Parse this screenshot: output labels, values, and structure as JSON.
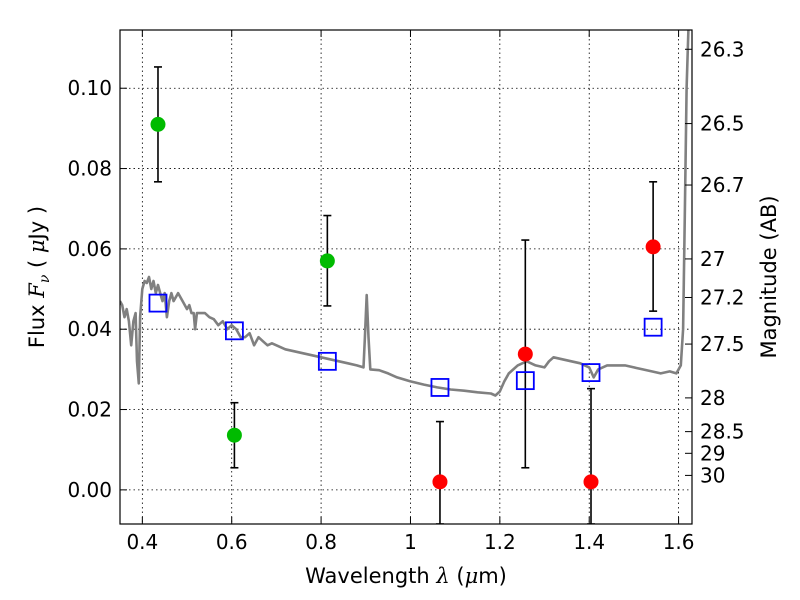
{
  "chart_data": {
    "type": "scatter",
    "xlabel": {
      "prefix": "Wavelength  ",
      "symbol": "λ",
      "suffix": " (",
      "mu": "μ",
      "unit": "m)"
    },
    "ylabel": {
      "prefix": "Flux  ",
      "symbol": "F",
      "sub": "ν",
      "suffix": "  ( ",
      "mu": "μ",
      "unit": "Jy )"
    },
    "y2label": "Magnitude (AB)",
    "xlim": [
      0.35,
      1.63
    ],
    "ylim": [
      -0.0085,
      0.1145
    ],
    "xticks": [
      0.4,
      0.6,
      0.8,
      1.0,
      1.2,
      1.4,
      1.6
    ],
    "xtick_labels": [
      "0.4",
      "0.6",
      "0.8",
      "1",
      "1.2",
      "1.4",
      "1.6"
    ],
    "yticks": [
      0.0,
      0.02,
      0.04,
      0.06,
      0.08,
      0.1
    ],
    "ytick_labels": [
      "0.00",
      "0.02",
      "0.04",
      "0.06",
      "0.08",
      "0.10"
    ],
    "magnitude_ticks": [
      {
        "label": "26.3",
        "flux": 0.1097
      },
      {
        "label": "26.5",
        "flux": 0.0912
      },
      {
        "label": "26.7",
        "flux": 0.0759
      },
      {
        "label": "27",
        "flux": 0.0575
      },
      {
        "label": "27.2",
        "flux": 0.0479
      },
      {
        "label": "27.5",
        "flux": 0.0363
      },
      {
        "label": "28",
        "flux": 0.0229
      },
      {
        "label": "28.5",
        "flux": 0.0145
      },
      {
        "label": "29",
        "flux": 0.0091
      },
      {
        "label": "30",
        "flux": 0.0036
      }
    ],
    "grid": true,
    "colors": {
      "green": "#00bb00",
      "red": "#ff0000",
      "model_box": "#0000ff",
      "spectrum": "#808080",
      "errorbar": "#000000"
    },
    "series": [
      {
        "marker": "green-circle",
        "points": [
          {
            "x": 0.435,
            "y": 0.091,
            "ylo": 0.0767,
            "yhi": 0.1053
          },
          {
            "x": 0.606,
            "y": 0.0136,
            "ylo": 0.0055,
            "yhi": 0.0217
          },
          {
            "x": 0.814,
            "y": 0.057,
            "ylo": 0.0458,
            "yhi": 0.0683
          }
        ]
      },
      {
        "marker": "red-circle",
        "points": [
          {
            "x": 1.066,
            "y": 0.002,
            "ylo": -0.0085,
            "yhi": 0.017
          },
          {
            "x": 1.257,
            "y": 0.0338,
            "ylo": 0.0055,
            "yhi": 0.0622
          },
          {
            "x": 1.404,
            "y": 0.002,
            "ylo": -0.0085,
            "yhi": 0.0252
          },
          {
            "x": 1.543,
            "y": 0.0605,
            "ylo": 0.0445,
            "yhi": 0.0767
          }
        ]
      },
      {
        "marker": "blue-square",
        "points": [
          {
            "x": 0.435,
            "y": 0.0465
          },
          {
            "x": 0.606,
            "y": 0.0396
          },
          {
            "x": 0.814,
            "y": 0.032
          },
          {
            "x": 1.066,
            "y": 0.0255
          },
          {
            "x": 1.257,
            "y": 0.0272
          },
          {
            "x": 1.404,
            "y": 0.0292
          },
          {
            "x": 1.543,
            "y": 0.0405
          }
        ]
      },
      {
        "marker": "spectrum-line",
        "points": [
          [
            0.35,
            0.047
          ],
          [
            0.355,
            0.046
          ],
          [
            0.36,
            0.043
          ],
          [
            0.365,
            0.045
          ],
          [
            0.37,
            0.042
          ],
          [
            0.375,
            0.036
          ],
          [
            0.38,
            0.042
          ],
          [
            0.385,
            0.044
          ],
          [
            0.388,
            0.032
          ],
          [
            0.392,
            0.0265
          ],
          [
            0.395,
            0.043
          ],
          [
            0.4,
            0.05
          ],
          [
            0.405,
            0.052
          ],
          [
            0.41,
            0.0515
          ],
          [
            0.415,
            0.053
          ],
          [
            0.42,
            0.05
          ],
          [
            0.425,
            0.052
          ],
          [
            0.43,
            0.049
          ],
          [
            0.435,
            0.051
          ],
          [
            0.44,
            0.049
          ],
          [
            0.445,
            0.047
          ],
          [
            0.45,
            0.049
          ],
          [
            0.455,
            0.043
          ],
          [
            0.46,
            0.047
          ],
          [
            0.465,
            0.049
          ],
          [
            0.47,
            0.047
          ],
          [
            0.48,
            0.049
          ],
          [
            0.49,
            0.047
          ],
          [
            0.5,
            0.045
          ],
          [
            0.505,
            0.046
          ],
          [
            0.51,
            0.044
          ],
          [
            0.515,
            0.044
          ],
          [
            0.518,
            0.04
          ],
          [
            0.522,
            0.044
          ],
          [
            0.53,
            0.044
          ],
          [
            0.54,
            0.044
          ],
          [
            0.55,
            0.043
          ],
          [
            0.56,
            0.0425
          ],
          [
            0.57,
            0.041
          ],
          [
            0.58,
            0.042
          ],
          [
            0.59,
            0.04
          ],
          [
            0.6,
            0.041
          ],
          [
            0.61,
            0.04
          ],
          [
            0.62,
            0.038
          ],
          [
            0.63,
            0.038
          ],
          [
            0.64,
            0.039
          ],
          [
            0.65,
            0.036
          ],
          [
            0.655,
            0.037
          ],
          [
            0.66,
            0.038
          ],
          [
            0.67,
            0.037
          ],
          [
            0.68,
            0.036
          ],
          [
            0.69,
            0.0365
          ],
          [
            0.7,
            0.036
          ],
          [
            0.72,
            0.035
          ],
          [
            0.74,
            0.0345
          ],
          [
            0.76,
            0.034
          ],
          [
            0.78,
            0.0335
          ],
          [
            0.8,
            0.033
          ],
          [
            0.82,
            0.0325
          ],
          [
            0.84,
            0.032
          ],
          [
            0.86,
            0.0315
          ],
          [
            0.88,
            0.031
          ],
          [
            0.895,
            0.0305
          ],
          [
            0.898,
            0.038
          ],
          [
            0.902,
            0.0485
          ],
          [
            0.906,
            0.038
          ],
          [
            0.91,
            0.03
          ],
          [
            0.93,
            0.0298
          ],
          [
            0.95,
            0.029
          ],
          [
            0.97,
            0.028
          ],
          [
            1.0,
            0.027
          ],
          [
            1.03,
            0.0262
          ],
          [
            1.06,
            0.0255
          ],
          [
            1.09,
            0.025
          ],
          [
            1.12,
            0.0247
          ],
          [
            1.15,
            0.0243
          ],
          [
            1.18,
            0.024
          ],
          [
            1.19,
            0.0235
          ],
          [
            1.2,
            0.0245
          ],
          [
            1.21,
            0.027
          ],
          [
            1.22,
            0.029
          ],
          [
            1.23,
            0.03
          ],
          [
            1.24,
            0.031
          ],
          [
            1.26,
            0.032
          ],
          [
            1.28,
            0.031
          ],
          [
            1.3,
            0.0305
          ],
          [
            1.31,
            0.032
          ],
          [
            1.32,
            0.033
          ],
          [
            1.34,
            0.0325
          ],
          [
            1.36,
            0.032
          ],
          [
            1.38,
            0.0315
          ],
          [
            1.39,
            0.031
          ],
          [
            1.4,
            0.0305
          ],
          [
            1.41,
            0.028
          ],
          [
            1.42,
            0.03
          ],
          [
            1.44,
            0.031
          ],
          [
            1.46,
            0.031
          ],
          [
            1.48,
            0.031
          ],
          [
            1.5,
            0.0305
          ],
          [
            1.52,
            0.03
          ],
          [
            1.54,
            0.0295
          ],
          [
            1.56,
            0.029
          ],
          [
            1.58,
            0.0295
          ],
          [
            1.595,
            0.029
          ],
          [
            1.605,
            0.031
          ],
          [
            1.61,
            0.04
          ],
          [
            1.614,
            0.07
          ],
          [
            1.618,
            0.1
          ],
          [
            1.622,
            0.1145
          ]
        ]
      }
    ]
  }
}
